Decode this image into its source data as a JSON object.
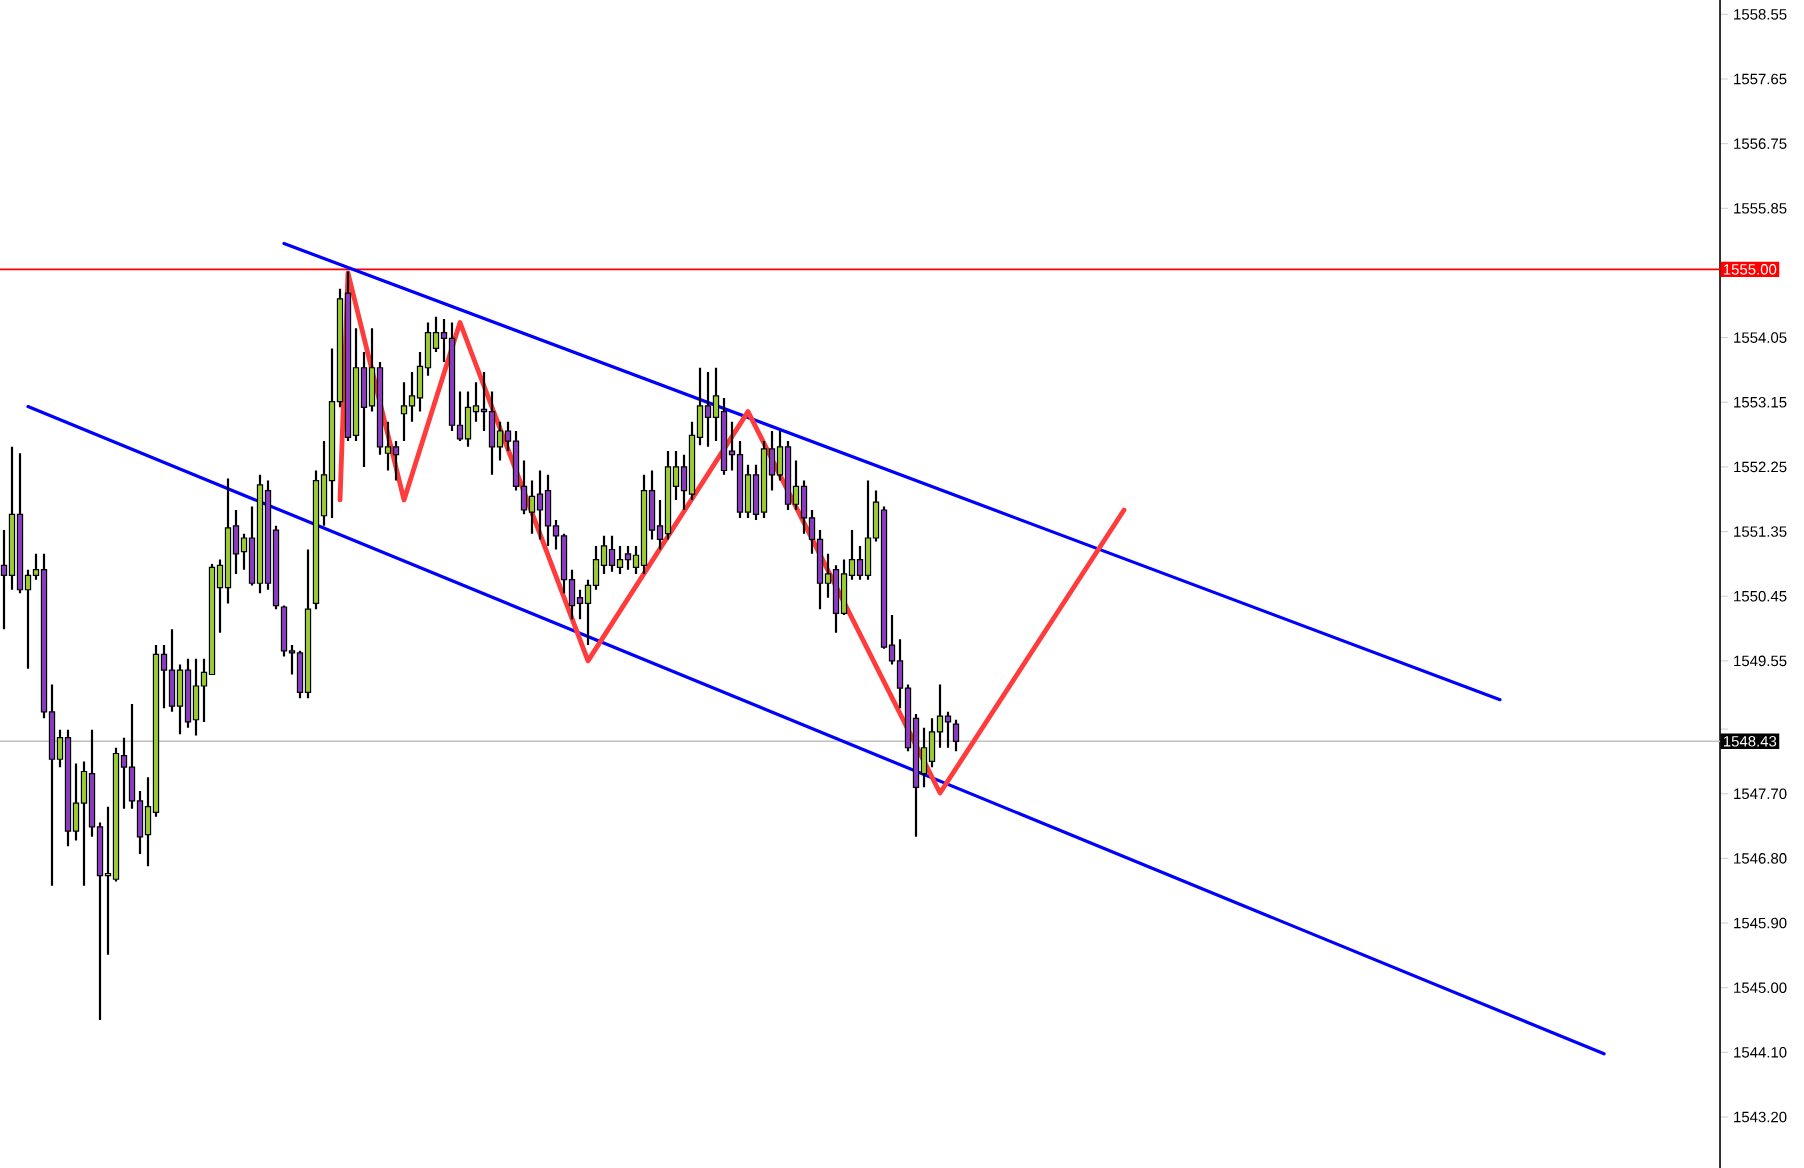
{
  "chart_data": {
    "type": "candlestick",
    "tick_labels": "y",
    "categories": [
      null,
      null,
      null,
      null,
      null,
      null,
      null,
      null,
      null,
      null,
      null,
      null,
      null,
      null,
      null,
      null,
      null,
      null,
      null,
      null,
      null,
      null,
      null,
      null,
      null,
      null,
      null,
      null,
      null,
      null,
      null,
      null,
      null,
      null,
      null,
      null,
      null,
      null,
      null,
      null,
      null,
      null,
      null,
      null,
      null,
      null,
      null,
      null,
      null,
      null,
      null,
      null,
      null,
      null,
      null,
      null,
      null,
      null,
      null,
      null,
      null,
      null,
      null,
      null,
      null,
      null,
      null,
      null,
      null,
      null,
      null,
      null,
      null,
      null,
      null,
      null,
      null,
      null,
      null,
      null,
      null,
      null,
      null,
      null,
      null,
      null,
      null,
      null,
      null,
      null,
      null,
      null,
      null,
      null,
      null,
      null,
      null,
      null,
      null,
      null,
      null,
      null,
      null,
      null,
      null,
      null,
      null,
      null,
      null,
      null,
      null,
      null,
      null,
      null,
      null,
      null,
      null,
      null,
      null,
      null,
      null,
      null,
      null,
      null,
      null,
      null,
      null,
      null,
      null,
      null,
      null,
      null,
      null,
      null,
      null,
      null,
      null,
      null,
      null,
      null,
      null,
      null,
      null,
      null,
      null,
      null,
      null,
      null,
      null,
      null,
      null,
      null,
      null,
      null,
      null,
      null,
      null,
      null,
      null,
      null,
      null,
      null,
      null,
      null,
      null,
      null,
      null,
      null,
      null,
      null,
      null,
      null,
      null,
      null,
      null,
      null,
      null,
      null,
      null,
      null,
      null,
      null,
      null,
      null,
      null,
      null,
      null,
      null,
      null,
      null,
      null,
      null,
      null,
      null,
      null,
      null,
      null,
      null,
      null,
      null,
      null,
      null,
      null,
      null,
      null,
      null,
      null,
      null,
      null,
      null,
      null,
      null,
      null,
      null,
      null
    ],
    "ylim": [
      1542.49,
      1558.75
    ],
    "yticks": [
      {
        "value": 1543.2,
        "label": "1543.20"
      },
      {
        "value": 1544.1,
        "label": "1544.10"
      },
      {
        "value": 1545.0,
        "label": "1545.00"
      },
      {
        "value": 1545.9,
        "label": "1545.90"
      },
      {
        "value": 1546.8,
        "label": "1546.80"
      },
      {
        "value": 1547.7,
        "label": "1547.70"
      },
      {
        "value": 1548.6,
        "label": null
      },
      {
        "value": 1549.55,
        "label": "1549.55"
      },
      {
        "value": 1550.45,
        "label": "1550.45"
      },
      {
        "value": 1551.35,
        "label": "1551.35"
      },
      {
        "value": 1552.25,
        "label": "1552.25"
      },
      {
        "value": 1553.15,
        "label": "1553.15"
      },
      {
        "value": 1554.05,
        "label": "1554.05"
      },
      {
        "value": 1555.85,
        "label": "1555.85"
      },
      {
        "value": 1556.75,
        "label": "1556.75"
      },
      {
        "value": 1557.65,
        "label": "1557.65"
      },
      {
        "value": 1558.55,
        "label": "1558.55"
      }
    ],
    "ref_lines": [
      {
        "axis": "y",
        "value": 1555.0,
        "label": "1555.00",
        "color": "#ff0000"
      },
      {
        "axis": "y",
        "value": 1548.43,
        "label": "1548.43",
        "color": "#c0c0c0"
      }
    ],
    "ohlc": [
      [
        1550.88,
        1551.37,
        1549.99,
        1550.74
      ],
      [
        1550.74,
        1552.53,
        1550.54,
        1551.59
      ],
      [
        1551.59,
        1552.44,
        1550.49,
        1550.54
      ],
      [
        1550.54,
        1550.82,
        1549.44,
        1550.74
      ],
      [
        1550.74,
        1551.04,
        1550.68,
        1550.82
      ],
      [
        1550.82,
        1551.04,
        1548.75,
        1548.84
      ],
      [
        1548.84,
        1549.22,
        1546.42,
        1548.18
      ],
      [
        1548.18,
        1548.59,
        1548.07,
        1548.48
      ],
      [
        1548.48,
        1548.59,
        1546.97,
        1547.18
      ],
      [
        1547.18,
        1548.12,
        1547.05,
        1547.57
      ],
      [
        1547.57,
        1548.15,
        1546.42,
        1548.01
      ],
      [
        1547.98,
        1548.59,
        1547.1,
        1547.24
      ],
      [
        1547.24,
        1547.3,
        1544.55,
        1546.56
      ],
      [
        1546.56,
        1547.52,
        1545.46,
        1546.59
      ],
      [
        1546.51,
        1548.34,
        1546.48,
        1548.26
      ],
      [
        1548.23,
        1548.48,
        1547.49,
        1548.07
      ],
      [
        1548.07,
        1548.95,
        1547.49,
        1547.6
      ],
      [
        1547.6,
        1547.74,
        1546.86,
        1547.1
      ],
      [
        1547.13,
        1547.93,
        1546.69,
        1547.52
      ],
      [
        1547.44,
        1549.77,
        1547.38,
        1549.64
      ],
      [
        1549.64,
        1549.77,
        1548.89,
        1549.42
      ],
      [
        1549.42,
        1549.99,
        1548.84,
        1548.92
      ],
      [
        1548.92,
        1549.5,
        1548.53,
        1549.42
      ],
      [
        1549.42,
        1549.58,
        1548.62,
        1548.7
      ],
      [
        1548.73,
        1549.58,
        1548.51,
        1549.2
      ],
      [
        1549.2,
        1549.58,
        1548.7,
        1549.39
      ],
      [
        1549.36,
        1550.9,
        1549.36,
        1550.85
      ],
      [
        1550.57,
        1550.96,
        1549.94,
        1550.88
      ],
      [
        1550.57,
        1552.09,
        1550.35,
        1551.4
      ],
      [
        1551.43,
        1551.65,
        1550.76,
        1551.04
      ],
      [
        1551.07,
        1551.32,
        1550.82,
        1551.26
      ],
      [
        1551.26,
        1551.7,
        1550.6,
        1550.63
      ],
      [
        1550.63,
        1552.14,
        1550.49,
        1552.0
      ],
      [
        1551.92,
        1552.06,
        1550.54,
        1550.63
      ],
      [
        1551.37,
        1551.43,
        1550.27,
        1550.32
      ],
      [
        1550.3,
        1550.32,
        1549.61,
        1549.69
      ],
      [
        1549.69,
        1549.77,
        1549.36,
        1549.66
      ],
      [
        1549.66,
        1549.69,
        1549.03,
        1549.11
      ],
      [
        1549.11,
        1551.1,
        1549.03,
        1550.27
      ],
      [
        1550.35,
        1552.2,
        1550.27,
        1552.06
      ],
      [
        1551.57,
        1552.61,
        1551.43,
        1552.14
      ],
      [
        1552.06,
        1553.9,
        1551.54,
        1553.16
      ],
      [
        1553.16,
        1554.73,
        1553.08,
        1554.59
      ],
      [
        1554.67,
        1554.97,
        1552.61,
        1552.66
      ],
      [
        1552.69,
        1554.18,
        1552.61,
        1553.63
      ],
      [
        1553.63,
        1553.85,
        1552.25,
        1553.08
      ],
      [
        1553.1,
        1554.18,
        1553.02,
        1553.63
      ],
      [
        1553.63,
        1553.71,
        1552.42,
        1552.53
      ],
      [
        1552.44,
        1552.88,
        1552.2,
        1552.53
      ],
      [
        1552.53,
        1552.61,
        1552.06,
        1552.42
      ],
      [
        1552.99,
        1553.43,
        1552.61,
        1553.1
      ],
      [
        1553.1,
        1553.57,
        1552.88,
        1553.24
      ],
      [
        1553.21,
        1553.85,
        1553.02,
        1553.65
      ],
      [
        1553.63,
        1554.26,
        1553.52,
        1554.12
      ],
      [
        1553.9,
        1554.34,
        1553.85,
        1554.12
      ],
      [
        1554.12,
        1554.31,
        1553.71,
        1554.04
      ],
      [
        1554.04,
        1554.26,
        1552.75,
        1552.83
      ],
      [
        1552.83,
        1553.3,
        1552.61,
        1552.64
      ],
      [
        1552.64,
        1553.3,
        1552.53,
        1553.08
      ],
      [
        1553.02,
        1553.43,
        1552.88,
        1553.1
      ],
      [
        1553.05,
        1553.57,
        1552.75,
        1553.02
      ],
      [
        1553.02,
        1553.3,
        1552.14,
        1552.53
      ],
      [
        1552.53,
        1552.88,
        1552.34,
        1552.75
      ],
      [
        1552.75,
        1552.88,
        1552.47,
        1552.61
      ],
      [
        1552.61,
        1552.75,
        1551.92,
        1551.98
      ],
      [
        1551.98,
        1552.34,
        1551.59,
        1551.65
      ],
      [
        1551.62,
        1552.06,
        1551.32,
        1551.84
      ],
      [
        1551.87,
        1552.2,
        1551.24,
        1551.65
      ],
      [
        1551.92,
        1552.14,
        1551.15,
        1551.43
      ],
      [
        1551.43,
        1551.51,
        1551.1,
        1551.29
      ],
      [
        1551.29,
        1551.32,
        1550.49,
        1550.68
      ],
      [
        1550.68,
        1550.82,
        1550.13,
        1550.32
      ],
      [
        1550.43,
        1550.54,
        1550.13,
        1550.35
      ],
      [
        1550.35,
        1550.68,
        1549.77,
        1550.6
      ],
      [
        1550.6,
        1551.15,
        1550.54,
        1550.96
      ],
      [
        1550.88,
        1551.29,
        1550.76,
        1551.15
      ],
      [
        1551.1,
        1551.29,
        1550.79,
        1550.88
      ],
      [
        1550.85,
        1551.15,
        1550.76,
        1550.96
      ],
      [
        1551.04,
        1551.15,
        1550.82,
        1550.96
      ],
      [
        1550.85,
        1551.15,
        1550.76,
        1551.02
      ],
      [
        1550.88,
        1552.14,
        1550.76,
        1551.92
      ],
      [
        1551.92,
        1552.2,
        1551.24,
        1551.37
      ],
      [
        1551.43,
        1551.79,
        1551.1,
        1551.24
      ],
      [
        1551.32,
        1552.47,
        1551.24,
        1552.25
      ],
      [
        1551.98,
        1552.47,
        1551.79,
        1552.25
      ],
      [
        1552.25,
        1552.42,
        1551.65,
        1551.92
      ],
      [
        1551.87,
        1552.88,
        1551.79,
        1552.69
      ],
      [
        1552.66,
        1553.63,
        1552.55,
        1553.1
      ],
      [
        1553.1,
        1553.57,
        1552.53,
        1552.94
      ],
      [
        1552.94,
        1553.63,
        1552.61,
        1553.24
      ],
      [
        1553.02,
        1553.21,
        1552.14,
        1552.2
      ],
      [
        1552.47,
        1552.88,
        1552.2,
        1552.42
      ],
      [
        1552.42,
        1552.61,
        1551.54,
        1551.62
      ],
      [
        1551.62,
        1552.28,
        1551.54,
        1552.14
      ],
      [
        1552.14,
        1552.28,
        1551.51,
        1551.59
      ],
      [
        1551.62,
        1552.61,
        1551.54,
        1552.5
      ],
      [
        1552.5,
        1552.75,
        1551.92,
        1552.14
      ],
      [
        1552.14,
        1552.75,
        1552.06,
        1552.53
      ],
      [
        1552.53,
        1552.61,
        1551.65,
        1551.73
      ],
      [
        1551.73,
        1552.34,
        1551.65,
        1551.98
      ],
      [
        1551.98,
        1552.06,
        1551.32,
        1551.54
      ],
      [
        1551.54,
        1551.65,
        1551.04,
        1551.24
      ],
      [
        1551.24,
        1551.37,
        1550.27,
        1550.63
      ],
      [
        1550.63,
        1551.04,
        1550.43,
        1550.76
      ],
      [
        1550.82,
        1550.88,
        1549.94,
        1550.21
      ],
      [
        1550.21,
        1550.96,
        1550.19,
        1550.76
      ],
      [
        1550.74,
        1551.37,
        1550.68,
        1550.96
      ],
      [
        1550.96,
        1551.15,
        1550.68,
        1550.74
      ],
      [
        1550.74,
        1552.06,
        1550.68,
        1551.26
      ],
      [
        1551.26,
        1551.92,
        1551.21,
        1551.76
      ],
      [
        1551.65,
        1551.7,
        1549.72,
        1549.74
      ],
      [
        1549.77,
        1550.19,
        1549.5,
        1549.55
      ],
      [
        1549.55,
        1549.85,
        1548.89,
        1549.17
      ],
      [
        1549.17,
        1549.22,
        1548.29,
        1548.34
      ],
      [
        1548.75,
        1548.81,
        1547.1,
        1547.79
      ],
      [
        1547.98,
        1548.62,
        1547.79,
        1548.34
      ],
      [
        1548.15,
        1548.75,
        1548.07,
        1548.56
      ],
      [
        1548.56,
        1549.22,
        1548.34,
        1548.78
      ],
      [
        1548.78,
        1548.84,
        1548.34,
        1548.7
      ],
      [
        1548.67,
        1548.73,
        1548.29,
        1548.43
      ],
      null,
      null,
      null,
      null,
      null,
      null,
      null,
      null,
      null,
      null,
      null,
      null,
      null,
      null,
      null,
      null,
      null,
      null,
      null,
      null,
      null,
      null,
      null,
      null,
      null,
      null,
      null,
      null,
      null,
      null,
      null,
      null,
      null,
      null,
      null,
      null,
      null,
      null,
      null,
      null,
      null,
      null,
      null,
      null,
      null,
      null,
      null,
      null,
      null,
      null,
      null,
      null,
      null,
      null,
      null,
      null,
      null,
      null,
      null,
      null,
      null,
      null,
      null,
      null,
      null,
      null,
      null,
      null,
      null,
      null,
      null,
      null,
      null,
      null,
      null,
      null,
      null,
      null,
      null,
      null,
      null,
      null,
      null,
      null,
      null,
      null,
      null,
      null,
      null,
      null,
      null,
      null,
      null,
      null,
      null
    ],
    "colors": [
      "#8b3bbf",
      "#9acd32",
      "#8b3bbf",
      "#9acd32",
      "#9acd32",
      "#8b3bbf",
      "#8b3bbf",
      "#9acd32",
      "#8b3bbf",
      "#9acd32",
      "#9acd32",
      "#8b3bbf",
      "#8b3bbf",
      "#9acd32",
      "#9acd32",
      "#8b3bbf",
      "#8b3bbf",
      "#8b3bbf",
      "#9acd32",
      "#9acd32",
      "#8b3bbf",
      "#8b3bbf",
      "#9acd32",
      "#8b3bbf",
      "#9acd32",
      "#9acd32",
      "#9acd32",
      "#9acd32",
      "#9acd32",
      "#8b3bbf",
      "#9acd32",
      "#8b3bbf",
      "#9acd32",
      "#8b3bbf",
      "#8b3bbf",
      "#8b3bbf",
      "#8b3bbf",
      "#8b3bbf",
      "#9acd32",
      "#9acd32",
      "#9acd32",
      "#9acd32",
      "#9acd32",
      "#8b3bbf",
      "#9acd32",
      "#8b3bbf",
      "#9acd32",
      "#8b3bbf",
      "#9acd32",
      "#8b3bbf",
      "#9acd32",
      "#9acd32",
      "#9acd32",
      "#9acd32",
      "#9acd32",
      "#8b3bbf",
      "#8b3bbf",
      "#8b3bbf",
      "#9acd32",
      "#9acd32",
      "#8b3bbf",
      "#8b3bbf",
      "#9acd32",
      "#8b3bbf",
      "#8b3bbf",
      "#8b3bbf",
      "#9acd32",
      "#8b3bbf",
      "#8b3bbf",
      "#8b3bbf",
      "#8b3bbf",
      "#8b3bbf",
      "#8b3bbf",
      "#9acd32",
      "#9acd32",
      "#9acd32",
      "#8b3bbf",
      "#9acd32",
      "#8b3bbf",
      "#9acd32",
      "#9acd32",
      "#8b3bbf",
      "#8b3bbf",
      "#9acd32",
      "#9acd32",
      "#8b3bbf",
      "#9acd32",
      "#9acd32",
      "#8b3bbf",
      "#9acd32",
      "#8b3bbf",
      "#8b3bbf",
      "#8b3bbf",
      "#9acd32",
      "#8b3bbf",
      "#9acd32",
      "#8b3bbf",
      "#9acd32",
      "#8b3bbf",
      "#9acd32",
      "#8b3bbf",
      "#8b3bbf",
      "#8b3bbf",
      "#9acd32",
      "#8b3bbf",
      "#9acd32",
      "#9acd32",
      "#8b3bbf",
      "#9acd32",
      "#9acd32",
      "#8b3bbf",
      "#8b3bbf",
      "#8b3bbf",
      "#8b3bbf",
      "#8b3bbf",
      "#9acd32",
      "#9acd32",
      "#9acd32",
      "#8b3bbf",
      "#8b3bbf",
      null,
      null,
      null,
      null,
      null,
      null,
      null,
      null,
      null,
      null,
      null,
      null,
      null,
      null,
      null,
      null,
      null,
      null,
      null,
      null,
      null,
      null,
      null,
      null,
      null,
      null,
      null,
      null,
      null,
      null,
      null,
      null,
      null,
      null,
      null,
      null,
      null,
      null,
      null,
      null,
      null,
      null,
      null,
      null,
      null,
      null,
      null,
      null,
      null,
      null,
      null,
      null,
      null,
      null,
      null,
      null,
      null,
      null,
      null,
      null,
      null,
      null,
      null,
      null,
      null,
      null,
      null,
      null,
      null,
      null,
      null,
      null,
      null,
      null,
      null,
      null,
      null,
      null,
      null,
      null,
      null,
      null,
      null,
      null,
      null,
      null,
      null,
      null,
      null,
      null,
      null,
      null,
      null,
      null,
      null
    ],
    "series": [
      {
        "type": "line",
        "color": "#0000ff",
        "values": [
          null,
          null,
          null,
          null,
          null,
          null,
          null,
          null,
          null,
          null,
          null,
          null,
          null,
          null,
          null,
          null,
          null,
          null,
          null,
          null,
          null,
          null,
          null,
          null,
          null,
          null,
          null,
          null,
          null,
          null,
          null,
          null,
          null,
          null,
          null,
          1555.36,
          null,
          null,
          null,
          null,
          null,
          null,
          null,
          null,
          null,
          null,
          null,
          null,
          null,
          null,
          null,
          null,
          null,
          null,
          null,
          null,
          null,
          null,
          null,
          null,
          null,
          null,
          null,
          null,
          null,
          null,
          null,
          null,
          null,
          null,
          null,
          null,
          null,
          null,
          null,
          null,
          null,
          null,
          null,
          null,
          null,
          null,
          null,
          null,
          null,
          null,
          null,
          null,
          null,
          null,
          null,
          null,
          null,
          null,
          null,
          null,
          null,
          null,
          null,
          null,
          null,
          null,
          null,
          null,
          null,
          null,
          null,
          null,
          null,
          null,
          null,
          null,
          null,
          null,
          null,
          null,
          null,
          null,
          null,
          null,
          null,
          null,
          null,
          null,
          null,
          null,
          null,
          null,
          null,
          null,
          null,
          null,
          null,
          null,
          null,
          null,
          null,
          null,
          null,
          null,
          null,
          null,
          null,
          null,
          null,
          null,
          null,
          null,
          null,
          null,
          null,
          null,
          null,
          null,
          null,
          null,
          null,
          null,
          null,
          null,
          null,
          null,
          null,
          null,
          null,
          null,
          null,
          null,
          null,
          null,
          null,
          null,
          null,
          null,
          null,
          null,
          null,
          null,
          null,
          null,
          null,
          null,
          null,
          null,
          null,
          null,
          null,
          1549.01,
          null,
          null,
          null,
          null,
          null,
          null,
          null,
          null,
          null,
          null,
          null,
          null,
          null,
          null,
          null,
          null,
          null,
          null,
          null,
          null,
          null,
          null,
          null,
          null,
          null,
          null,
          null
        ]
      },
      {
        "type": "line",
        "color": "#0000ff",
        "values": [
          null,
          null,
          null,
          1553.09,
          null,
          null,
          null,
          null,
          null,
          null,
          null,
          null,
          null,
          null,
          null,
          null,
          null,
          null,
          null,
          null,
          null,
          null,
          null,
          null,
          null,
          null,
          null,
          null,
          null,
          null,
          null,
          null,
          null,
          null,
          null,
          null,
          null,
          null,
          null,
          null,
          null,
          null,
          null,
          null,
          null,
          null,
          null,
          null,
          null,
          null,
          null,
          null,
          null,
          null,
          null,
          null,
          null,
          null,
          null,
          null,
          null,
          null,
          null,
          null,
          null,
          null,
          null,
          null,
          null,
          null,
          null,
          null,
          null,
          null,
          null,
          null,
          null,
          null,
          null,
          null,
          null,
          null,
          null,
          null,
          null,
          null,
          null,
          null,
          null,
          null,
          null,
          null,
          null,
          null,
          null,
          null,
          null,
          null,
          null,
          null,
          null,
          null,
          null,
          null,
          null,
          null,
          null,
          null,
          null,
          null,
          null,
          null,
          null,
          null,
          null,
          null,
          null,
          null,
          null,
          null,
          null,
          null,
          null,
          null,
          null,
          null,
          null,
          null,
          null,
          null,
          null,
          null,
          null,
          null,
          null,
          null,
          null,
          null,
          null,
          null,
          null,
          null,
          null,
          null,
          null,
          null,
          null,
          null,
          null,
          null,
          null,
          null,
          null,
          null,
          null,
          null,
          null,
          null,
          null,
          null,
          null,
          null,
          null,
          null,
          null,
          null,
          null,
          null,
          null,
          null,
          null,
          null,
          null,
          null,
          null,
          null,
          null,
          null,
          null,
          null,
          null,
          null,
          null,
          null,
          null,
          null,
          null,
          null,
          null,
          null,
          null,
          null,
          null,
          null,
          null,
          null,
          null,
          null,
          null,
          null,
          1544.08,
          null,
          null,
          null,
          null,
          null,
          null,
          null,
          null,
          null,
          null,
          null,
          null,
          null,
          null
        ]
      },
      {
        "type": "line",
        "color": "#ff3b3b",
        "values": [
          null,
          null,
          null,
          null,
          null,
          null,
          null,
          null,
          null,
          null,
          null,
          null,
          null,
          null,
          null,
          null,
          null,
          null,
          null,
          null,
          null,
          null,
          null,
          null,
          null,
          null,
          null,
          null,
          null,
          null,
          null,
          null,
          null,
          null,
          null,
          null,
          null,
          null,
          null,
          null,
          null,
          null,
          1551.79,
          1554.95,
          null,
          null,
          null,
          null,
          null,
          null,
          1551.79,
          null,
          null,
          null,
          null,
          null,
          null,
          1554.26,
          null,
          null,
          null,
          null,
          null,
          null,
          null,
          null,
          null,
          null,
          null,
          null,
          null,
          null,
          null,
          1549.55,
          null,
          null,
          null,
          null,
          null,
          null,
          null,
          null,
          null,
          null,
          null,
          null,
          null,
          null,
          null,
          null,
          null,
          null,
          null,
          1553.02,
          null,
          null,
          null,
          null,
          null,
          null,
          null,
          null,
          null,
          null,
          null,
          null,
          null,
          null,
          null,
          null,
          null,
          null,
          null,
          null,
          null,
          null,
          null,
          1547.71,
          null,
          null,
          null,
          null,
          null,
          null,
          null,
          null,
          null,
          null,
          null,
          null,
          null,
          null,
          null,
          null,
          null,
          null,
          null,
          null,
          null,
          null,
          1551.65,
          null,
          null,
          null,
          null,
          null,
          null,
          null,
          null,
          null,
          null,
          null,
          null,
          null,
          null,
          null,
          null,
          null,
          null,
          null,
          null,
          null,
          null,
          null,
          null,
          null,
          null,
          null,
          null,
          null,
          null,
          null,
          null,
          null,
          null,
          null,
          null,
          null,
          null,
          null,
          null,
          null,
          null,
          null,
          null,
          null,
          null,
          null,
          null,
          null,
          null,
          null,
          null,
          null,
          null,
          null,
          null,
          null,
          null,
          null,
          null,
          null,
          null,
          null,
          null,
          null,
          null,
          null,
          null,
          null,
          null,
          null,
          null,
          null,
          null
        ]
      }
    ]
  }
}
